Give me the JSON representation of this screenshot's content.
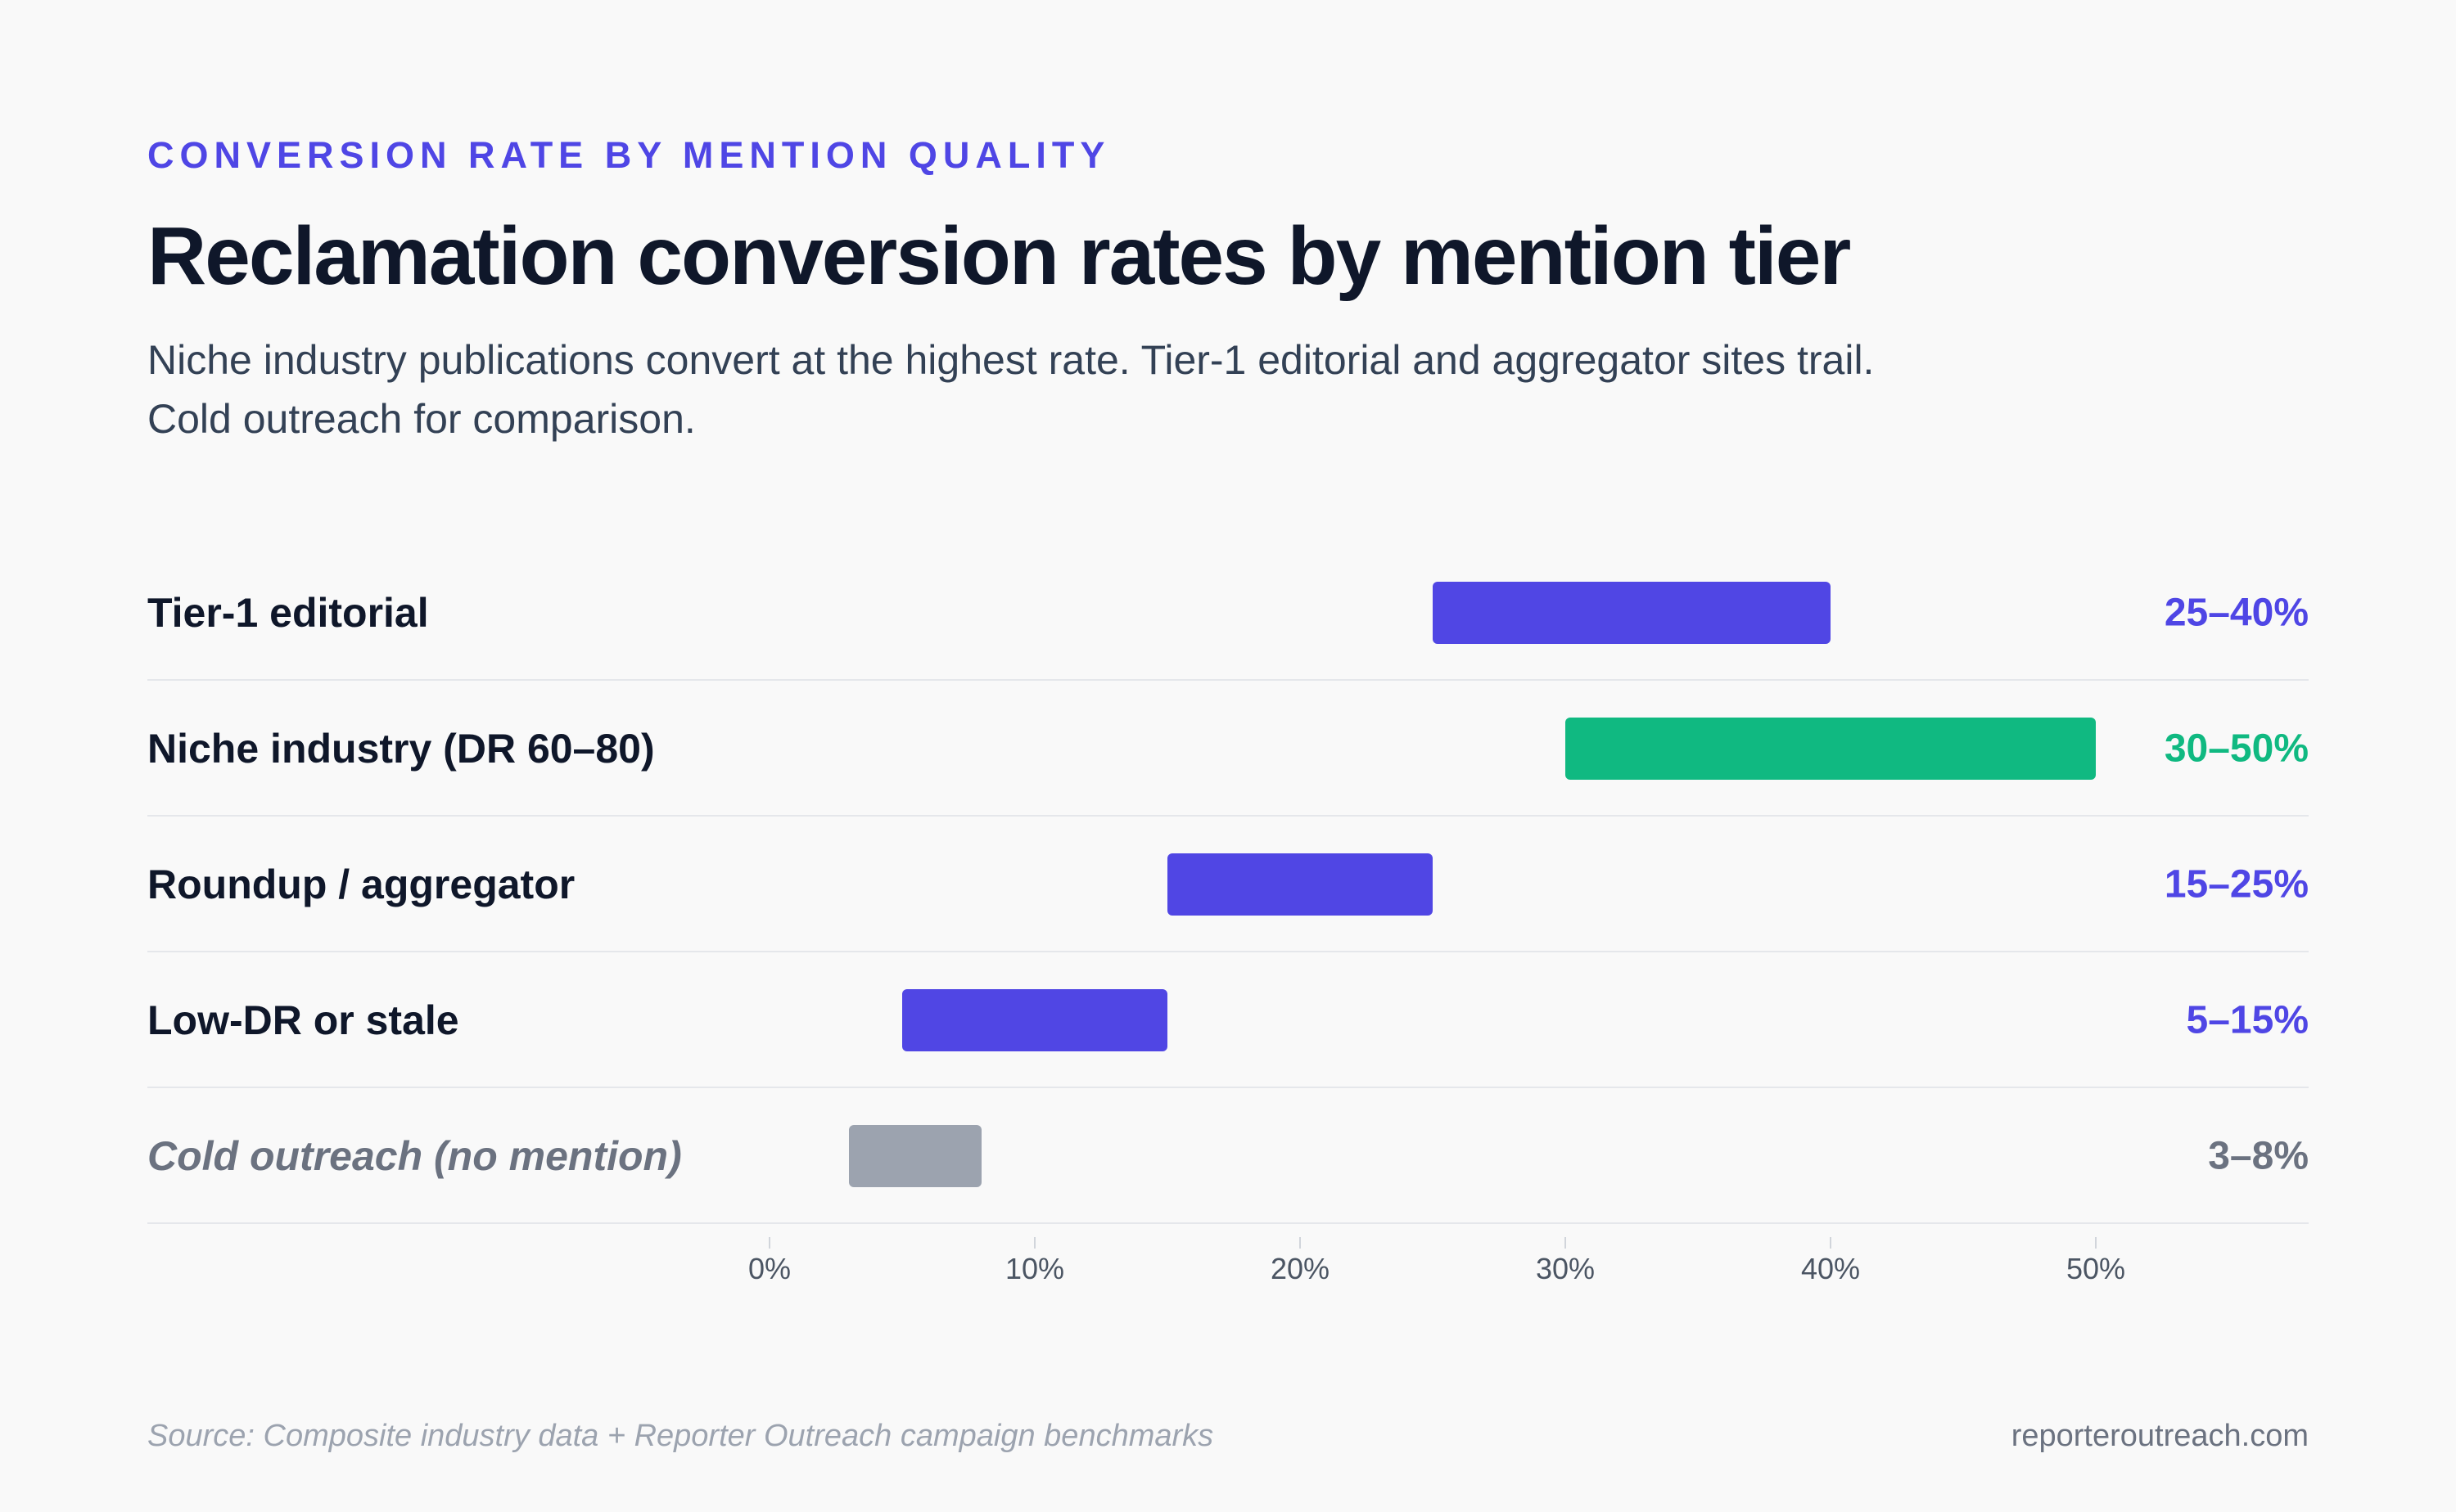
{
  "header": {
    "eyebrow": "CONVERSION RATE BY MENTION QUALITY",
    "title": "Reclamation conversion rates by mention tier",
    "subtitle_line1": "Niche industry publications convert at the highest rate. Tier-1 editorial and aggregator sites trail.",
    "subtitle_line2": "Cold outreach for comparison."
  },
  "colors": {
    "accent": "#4f46e5",
    "bar_primary": "#5046e4",
    "bar_highlight": "#10b981",
    "bar_muted": "#9ca3af",
    "text_dark": "#0f172a",
    "text_muted": "#6b7280"
  },
  "chart_data": {
    "type": "bar",
    "orientation": "horizontal",
    "subtype": "range",
    "xlim": [
      0,
      50
    ],
    "x_ticks": [
      "0%",
      "10%",
      "20%",
      "30%",
      "40%",
      "50%"
    ],
    "categories": [
      "Tier-1 editorial",
      "Niche industry (DR 60–80)",
      "Roundup / aggregator",
      "Low-DR or stale",
      "Cold outreach (no mention)"
    ],
    "ranges": [
      {
        "label": "Tier-1 editorial",
        "min": 25,
        "max": 40,
        "value_label": "25–40%",
        "style": "primary"
      },
      {
        "label": "Niche industry (DR 60–80)",
        "min": 30,
        "max": 50,
        "value_label": "30–50%",
        "style": "highlight"
      },
      {
        "label": "Roundup / aggregator",
        "min": 15,
        "max": 25,
        "value_label": "15–25%",
        "style": "primary"
      },
      {
        "label": "Low-DR or stale",
        "min": 5,
        "max": 15,
        "value_label": "5–15%",
        "style": "primary"
      },
      {
        "label": "Cold outreach (no mention)",
        "min": 3,
        "max": 8,
        "value_label": "3–8%",
        "style": "muted"
      }
    ]
  },
  "footer": {
    "source": "Source: Composite industry data + Reporter Outreach campaign benchmarks",
    "site": "reporteroutreach.com"
  }
}
